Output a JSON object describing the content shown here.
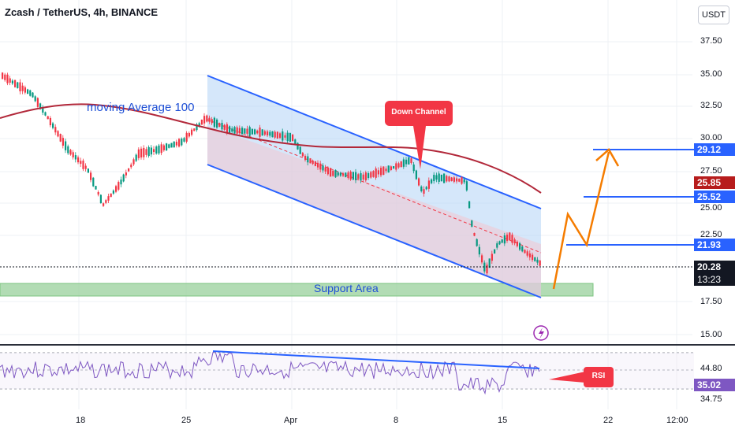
{
  "header": {
    "symbol_title": "Zcash / TetherUS, 4h, BINANCE",
    "currency_button": "USDT"
  },
  "price_axis": {
    "ticks": [
      "37.50",
      "35.00",
      "32.50",
      "30.00",
      "27.50",
      "25.00",
      "22.50",
      "17.50",
      "15.00"
    ]
  },
  "price_tags": {
    "target_high": "29.12",
    "last_close": "25.85",
    "target_mid": "25.52",
    "target_low": "21.93",
    "current_price": "20.28",
    "countdown": "13:23",
    "colors": {
      "blue": "#2962ff",
      "red": "#b71c1c",
      "black": "#131722"
    }
  },
  "rsi_axis": {
    "ticks": [
      "44.80",
      "34.75"
    ],
    "current": "35.02"
  },
  "time_axis": {
    "ticks": [
      "18",
      "25",
      "Apr",
      "8",
      "15",
      "22",
      "12:00"
    ]
  },
  "annotations": {
    "moving_average": "moving Average 100",
    "down_channel": "Down Channel",
    "support_area": "Support Area",
    "rsi": "RSI"
  },
  "colors": {
    "channel_line": "#2962ff",
    "ma_line": "#b2283a",
    "support_fill": "#a5d6a7",
    "projection": "#f57c00",
    "candle_up": "#089981",
    "candle_down": "#f23645",
    "rsi_line": "#7e57c2"
  },
  "icons": {
    "alert": "lightning-icon"
  }
}
